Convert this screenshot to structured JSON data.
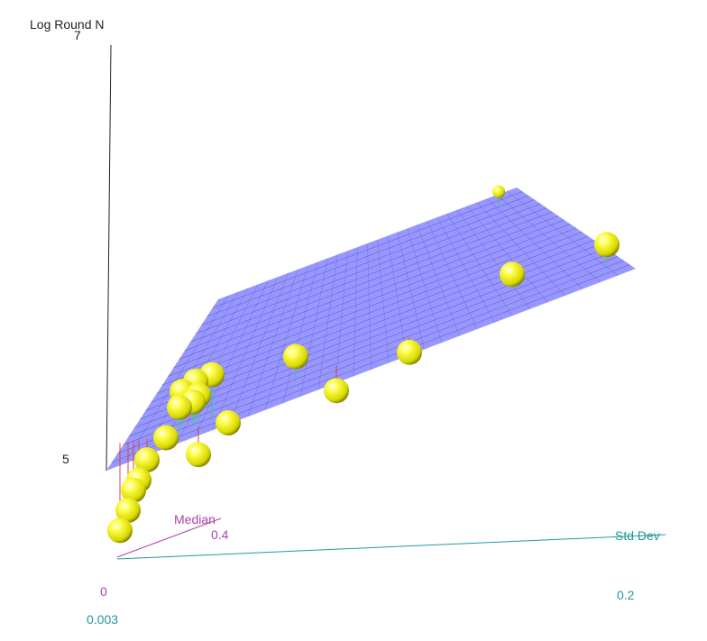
{
  "chart_data": {
    "type": "scatter",
    "subtype": "3d-scatter-with-fitted-plane",
    "axes": {
      "z": {
        "label": "Log Round N",
        "ticks": [
          {
            "value": 5,
            "label": "5"
          },
          {
            "value": 7,
            "label": "7"
          }
        ]
      },
      "x": {
        "label": "Median",
        "ticks": [
          {
            "value": 0,
            "label": "0"
          },
          {
            "value": 0.4,
            "label": "0.4"
          }
        ]
      },
      "y": {
        "label": "Std Dev",
        "ticks": [
          {
            "value": 0.003,
            "label": "0.003"
          },
          {
            "value": 0.2,
            "label": "0.2"
          }
        ]
      }
    },
    "surface": {
      "type": "fitted-plane",
      "color": "#8080ff",
      "grid_color": "#3c3c9a"
    },
    "point_color": "#ffff33",
    "residual_colors": {
      "above": "#33cc88",
      "below": "#dd4444"
    },
    "points": [
      {
        "median": 0.0,
        "sd": 0.005,
        "logN": 4.1,
        "fit": 4.98
      },
      {
        "median": 0.0,
        "sd": 0.008,
        "logN": 4.3,
        "fit": 4.99
      },
      {
        "median": 0.0,
        "sd": 0.01,
        "logN": 4.5,
        "fit": 5.0
      },
      {
        "median": 0.0,
        "sd": 0.012,
        "logN": 4.6,
        "fit": 5.0
      },
      {
        "median": 0.0,
        "sd": 0.015,
        "logN": 4.8,
        "fit": 5.01
      },
      {
        "median": 0.02,
        "sd": 0.02,
        "logN": 5.0,
        "fit": 5.03
      },
      {
        "median": 0.02,
        "sd": 0.025,
        "logN": 5.3,
        "fit": 5.06
      },
      {
        "median": 0.03,
        "sd": 0.025,
        "logN": 5.45,
        "fit": 5.1
      },
      {
        "median": 0.03,
        "sd": 0.03,
        "logN": 5.55,
        "fit": 5.13
      },
      {
        "median": 0.02,
        "sd": 0.03,
        "logN": 5.35,
        "fit": 5.12
      },
      {
        "median": 0.04,
        "sd": 0.03,
        "logN": 5.4,
        "fit": 5.14
      },
      {
        "median": 0.04,
        "sd": 0.035,
        "logN": 5.6,
        "fit": 5.16
      },
      {
        "median": 0.05,
        "sd": 0.04,
        "logN": 5.1,
        "fit": 5.24
      },
      {
        "median": 0.04,
        "sd": 0.03,
        "logN": 4.8,
        "fit": 5.08
      },
      {
        "median": 0.1,
        "sd": 0.06,
        "logN": 5.7,
        "fit": 5.45
      },
      {
        "median": 0.15,
        "sd": 0.07,
        "logN": 5.3,
        "fit": 5.55
      },
      {
        "median": 0.22,
        "sd": 0.09,
        "logN": 5.6,
        "fit": 5.75
      },
      {
        "median": 0.4,
        "sd": 0.11,
        "logN": 6.2,
        "fit": 6.05
      },
      {
        "median": 0.35,
        "sd": 0.15,
        "logN": 6.5,
        "fit": 6.3
      },
      {
        "median": 0.4,
        "sd": 0.2,
        "logN": 6.6,
        "fit": 6.5
      },
      {
        "median": 0.38,
        "sd": 0.195,
        "logN": 6.5,
        "fit": 6.52
      },
      {
        "median": 0.45,
        "sd": 0.1,
        "logN": 7.0,
        "fit": 6.85
      }
    ]
  }
}
